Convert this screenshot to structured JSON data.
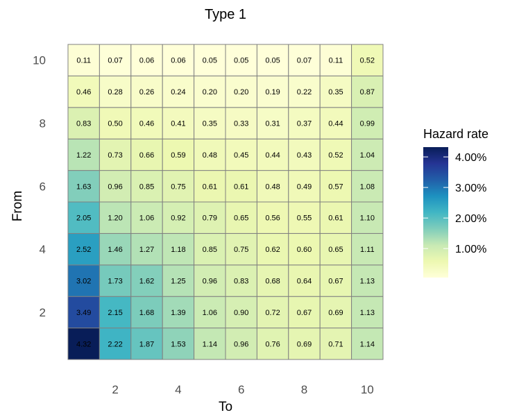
{
  "chart_data": {
    "type": "heatmap",
    "title": "Type 1",
    "xlabel": "To",
    "ylabel": "From",
    "x": [
      1,
      2,
      3,
      4,
      5,
      6,
      7,
      8,
      9,
      10
    ],
    "y": [
      1,
      2,
      3,
      4,
      5,
      6,
      7,
      8,
      9,
      10
    ],
    "x_ticks": [
      "2",
      "4",
      "6",
      "8",
      "10"
    ],
    "y_ticks": [
      "2",
      "4",
      "6",
      "8",
      "10"
    ],
    "values": [
      [
        "4.32",
        "2.22",
        "1.87",
        "1.53",
        "1.14",
        "0.96",
        "0.76",
        "0.69",
        "0.71",
        "1.14"
      ],
      [
        "3.49",
        "2.15",
        "1.68",
        "1.39",
        "1.06",
        "0.90",
        "0.72",
        "0.67",
        "0.69",
        "1.13"
      ],
      [
        "3.02",
        "1.73",
        "1.62",
        "1.25",
        "0.96",
        "0.83",
        "0.68",
        "0.64",
        "0.67",
        "1.13"
      ],
      [
        "2.52",
        "1.46",
        "1.27",
        "1.18",
        "0.85",
        "0.75",
        "0.62",
        "0.60",
        "0.65",
        "1.11"
      ],
      [
        "2.05",
        "1.20",
        "1.06",
        "0.92",
        "0.79",
        "0.65",
        "0.56",
        "0.55",
        "0.61",
        "1.10"
      ],
      [
        "1.63",
        "0.96",
        "0.85",
        "0.75",
        "0.61",
        "0.61",
        "0.48",
        "0.49",
        "0.57",
        "1.08"
      ],
      [
        "1.22",
        "0.73",
        "0.66",
        "0.59",
        "0.48",
        "0.45",
        "0.44",
        "0.43",
        "0.52",
        "1.04"
      ],
      [
        "0.83",
        "0.50",
        "0.46",
        "0.41",
        "0.35",
        "0.33",
        "0.31",
        "0.37",
        "0.44",
        "0.99"
      ],
      [
        "0.46",
        "0.28",
        "0.26",
        "0.24",
        "0.20",
        "0.20",
        "0.19",
        "0.22",
        "0.35",
        "0.87"
      ],
      [
        "0.11",
        "0.07",
        "0.06",
        "0.06",
        "0.05",
        "0.05",
        "0.05",
        "0.07",
        "0.11",
        "0.52"
      ]
    ],
    "legend": {
      "title": "Hazard rate",
      "ticks": [
        {
          "value": 1,
          "label": "1.00%"
        },
        {
          "value": 2,
          "label": "2.00%"
        },
        {
          "value": 3,
          "label": "3.00%"
        },
        {
          "value": 4,
          "label": "4.00%"
        }
      ],
      "range": [
        0.05,
        4.32
      ],
      "placement": "right"
    },
    "color_scale": [
      "#ffffd9",
      "#edf8b1",
      "#c7e9b4",
      "#7fcdbb",
      "#41b6c4",
      "#1d91c0",
      "#225ea8",
      "#253494",
      "#081d58"
    ],
    "grid_line_color": "#808080",
    "grid": false
  }
}
